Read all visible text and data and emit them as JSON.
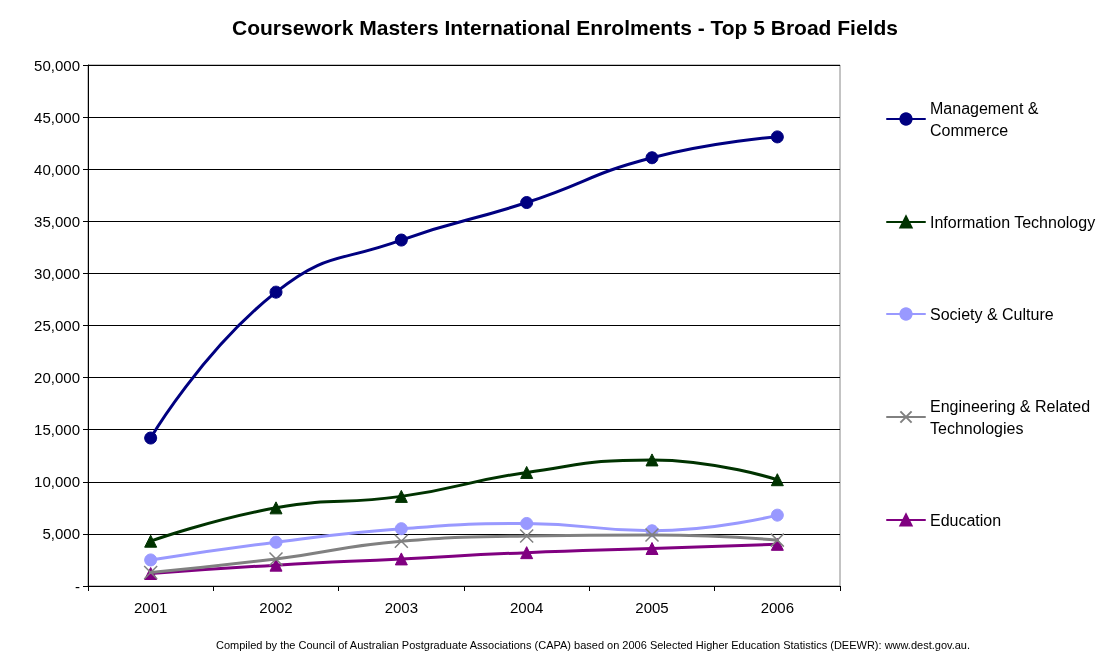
{
  "chart_data": {
    "type": "line",
    "title": "Coursework Masters International Enrolments - Top 5 Broad Fields",
    "categories": [
      "2001",
      "2002",
      "2003",
      "2004",
      "2005",
      "2006"
    ],
    "series": [
      {
        "name": "Management & Commerce",
        "color": "#000080",
        "marker": "circle",
        "values": [
          14200,
          28200,
          33200,
          36800,
          41100,
          43100
        ]
      },
      {
        "name": "Information Technology",
        "color": "#003300",
        "marker": "triangle",
        "values": [
          4300,
          7500,
          8600,
          10900,
          12100,
          10200
        ]
      },
      {
        "name": "Society & Culture",
        "color": "#9999ff",
        "marker": "circle",
        "values": [
          2500,
          4200,
          5500,
          6000,
          5300,
          6800
        ]
      },
      {
        "name": "Engineering & Related Technologies",
        "color": "#808080",
        "marker": "cross",
        "values": [
          1300,
          2600,
          4300,
          4800,
          4900,
          4400
        ]
      },
      {
        "name": "Education",
        "color": "#800080",
        "marker": "triangle",
        "values": [
          1200,
          2000,
          2600,
          3200,
          3600,
          4000
        ]
      }
    ],
    "ylim": [
      0,
      50000
    ],
    "yticks": [
      {
        "value": 0,
        "label": "-"
      },
      {
        "value": 5000,
        "label": "5,000"
      },
      {
        "value": 10000,
        "label": "10,000"
      },
      {
        "value": 15000,
        "label": "15,000"
      },
      {
        "value": 20000,
        "label": "20,000"
      },
      {
        "value": 25000,
        "label": "25,000"
      },
      {
        "value": 30000,
        "label": "30,000"
      },
      {
        "value": 35000,
        "label": "35,000"
      },
      {
        "value": 40000,
        "label": "40,000"
      },
      {
        "value": 45000,
        "label": "45,000"
      },
      {
        "value": 50000,
        "label": "50,000"
      }
    ],
    "grid": "y",
    "legend": "right",
    "annotations": [
      "Compiled by the Council of Australian Postgraduate Associations (CAPA) based on 2006 Selected Higher Education Statistics (DEEWR): www.dest.gov.au."
    ]
  }
}
